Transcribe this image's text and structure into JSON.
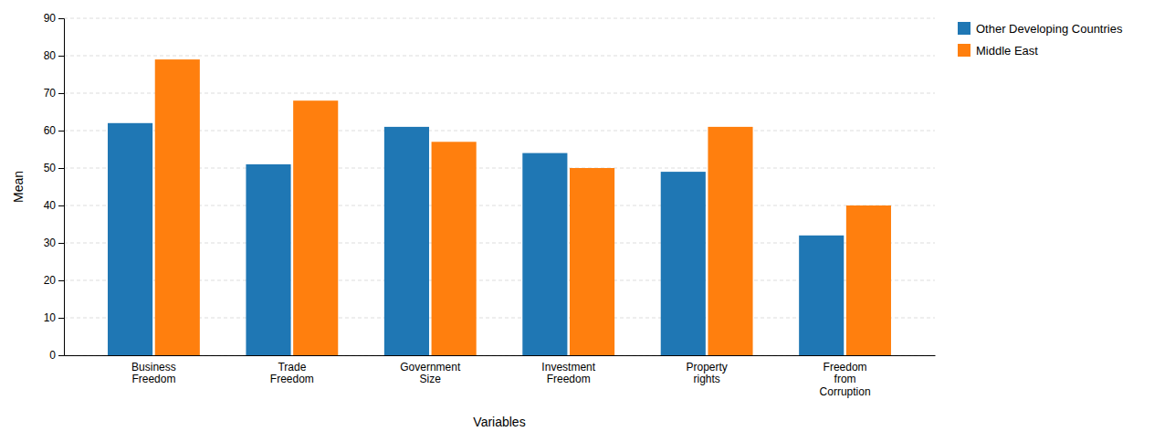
{
  "chart_data": {
    "type": "bar",
    "categories": [
      "Business\nFreedom",
      "Trade\nFreedom",
      "Government\nSize",
      "Investment\nFreedom",
      "Property\nrights",
      "Freedom\nfrom\nCorruption"
    ],
    "series": [
      {
        "name": "Other Developing Countries",
        "values": [
          62,
          51,
          61,
          54,
          49,
          32
        ]
      },
      {
        "name": "Middle East",
        "values": [
          79,
          68,
          57,
          50,
          61,
          40
        ]
      }
    ],
    "xlabel": "Variables",
    "ylabel": "Mean",
    "ylim": [
      0,
      90
    ],
    "yticks": [
      0,
      10,
      20,
      30,
      40,
      50,
      60,
      70,
      80,
      90
    ],
    "grid": true,
    "legend": "upper right"
  }
}
